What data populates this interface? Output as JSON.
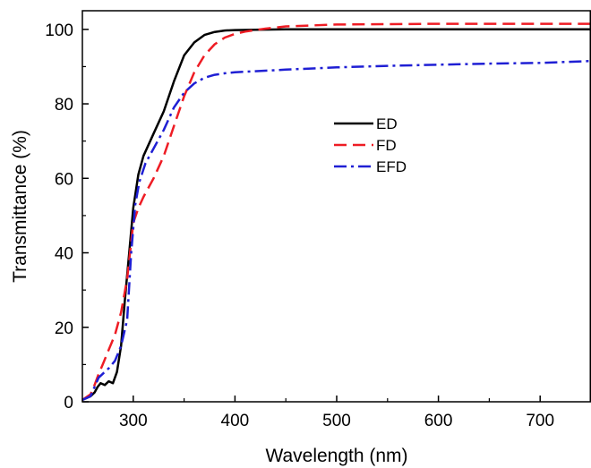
{
  "chart_data": {
    "type": "line",
    "xlabel": "Wavelength (nm)",
    "ylabel": "Transmittance (%)",
    "xlim": [
      250,
      750
    ],
    "ylim": [
      0,
      105
    ],
    "x_ticks": [
      300,
      400,
      500,
      600,
      700
    ],
    "y_ticks": [
      0,
      20,
      40,
      60,
      80,
      100
    ],
    "x_tick_labels": [
      "300",
      "400",
      "500",
      "600",
      "700"
    ],
    "y_tick_labels": [
      "0",
      "20",
      "40",
      "60",
      "80",
      "100"
    ],
    "grid": false,
    "legend_position": "center-right",
    "series": [
      {
        "name": "ED",
        "color": "#000000",
        "dash": "solid",
        "x": [
          250,
          258,
          262,
          265,
          268,
          272,
          276,
          280,
          284,
          288,
          292,
          296,
          300,
          305,
          310,
          320,
          330,
          340,
          350,
          360,
          370,
          380,
          390,
          400,
          420,
          450,
          500,
          600,
          700,
          750
        ],
        "y": [
          0.5,
          1.5,
          2.5,
          4.0,
          5.0,
          4.5,
          5.5,
          5.0,
          8.0,
          15.0,
          28.0,
          40.0,
          52.0,
          61.0,
          66.0,
          72.0,
          78.0,
          86.0,
          93.0,
          96.5,
          98.5,
          99.3,
          99.7,
          99.8,
          99.9,
          100.0,
          100.0,
          100.0,
          100.0,
          100.0
        ]
      },
      {
        "name": "FD",
        "color": "#ee1c24",
        "dash": "dashed",
        "x": [
          250,
          258,
          262,
          266,
          270,
          276,
          282,
          288,
          294,
          300,
          305,
          310,
          320,
          330,
          340,
          350,
          360,
          370,
          380,
          390,
          400,
          410,
          420,
          430,
          450,
          500,
          600,
          700,
          750
        ],
        "y": [
          0.5,
          2.0,
          4.5,
          7.5,
          10.0,
          14.0,
          18.0,
          24.0,
          33.0,
          48.0,
          52.0,
          55.0,
          60.0,
          66.0,
          74.0,
          82.0,
          88.5,
          93.0,
          96.0,
          97.8,
          98.8,
          99.4,
          99.8,
          100.2,
          100.8,
          101.3,
          101.5,
          101.5,
          101.5
        ]
      },
      {
        "name": "EFD",
        "color": "#1f1fd4",
        "dash": "dashdot",
        "x": [
          250,
          258,
          262,
          266,
          270,
          276,
          282,
          288,
          294,
          298,
          302,
          306,
          312,
          320,
          330,
          340,
          350,
          360,
          370,
          380,
          390,
          400,
          450,
          500,
          550,
          600,
          650,
          700,
          750
        ],
        "y": [
          0.5,
          1.5,
          4.0,
          6.5,
          7.5,
          9.0,
          11.0,
          15.0,
          22.0,
          40.0,
          53.0,
          59.0,
          64.0,
          68.0,
          73.0,
          79.0,
          83.0,
          85.5,
          87.0,
          87.8,
          88.2,
          88.5,
          89.2,
          89.8,
          90.2,
          90.5,
          90.8,
          91.0,
          91.5
        ]
      }
    ]
  }
}
